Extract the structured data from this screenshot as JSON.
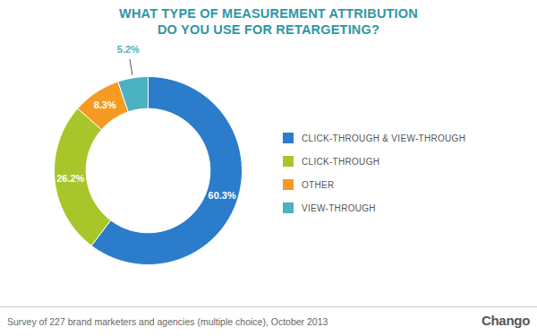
{
  "chart_data": {
    "type": "donut",
    "title": "WHAT TYPE OF MEASUREMENT ATTRIBUTION\nDO YOU USE FOR RETARGETING?",
    "categories": [
      "CLICK-THROUGH & VIEW-THROUGH",
      "CLICK-THROUGH",
      "OTHER",
      "VIEW-THROUGH"
    ],
    "values": [
      60.3,
      26.2,
      8.3,
      5.2
    ],
    "value_labels": [
      "60.3%",
      "26.2%",
      "8.3%",
      "5.2%"
    ],
    "colors": [
      "#2b7ccb",
      "#a8c52a",
      "#f59a23",
      "#4bb2c1"
    ],
    "data_labels": true,
    "legend": "right",
    "note": "Survey of 227 brand marketers and agencies (multiple choice), October 2013",
    "source": "Chango"
  }
}
